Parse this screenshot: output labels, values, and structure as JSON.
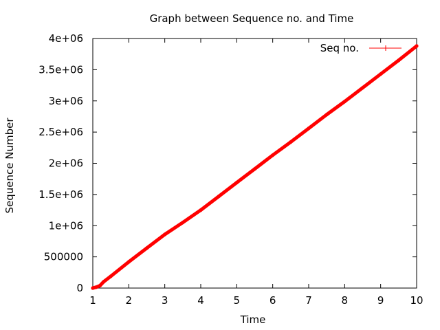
{
  "chart_data": {
    "type": "line",
    "title": "Graph between Sequence no. and Time",
    "xlabel": "Time",
    "ylabel": "Sequence Number",
    "xlim": [
      1,
      10
    ],
    "ylim": [
      0,
      4000000
    ],
    "x_ticks": [
      1,
      2,
      3,
      4,
      5,
      6,
      7,
      8,
      9,
      10
    ],
    "x_tick_labels": [
      "1",
      "2",
      "3",
      "4",
      "5",
      "6",
      "7",
      "8",
      "9",
      "10"
    ],
    "y_ticks": [
      0,
      500000,
      1000000,
      1500000,
      2000000,
      2500000,
      3000000,
      3500000,
      4000000
    ],
    "y_tick_labels": [
      "0",
      "500000",
      "1e+06",
      "1.5e+06",
      "2e+06",
      "2.5e+06",
      "3e+06",
      "3.5e+06",
      "4e+06"
    ],
    "grid": false,
    "legend_position": "top-right",
    "series": [
      {
        "name": "Seq no.",
        "color": "#ff0000",
        "points": [
          [
            1.0,
            0
          ],
          [
            1.1,
            15000
          ],
          [
            1.2,
            40000
          ],
          [
            1.3,
            100000
          ],
          [
            1.5,
            190000
          ],
          [
            2.0,
            420000
          ],
          [
            2.5,
            640000
          ],
          [
            3.0,
            860000
          ],
          [
            3.5,
            1050000
          ],
          [
            4.0,
            1250000
          ],
          [
            4.5,
            1470000
          ],
          [
            5.0,
            1690000
          ],
          [
            5.5,
            1910000
          ],
          [
            6.0,
            2130000
          ],
          [
            6.5,
            2340000
          ],
          [
            7.0,
            2560000
          ],
          [
            7.5,
            2780000
          ],
          [
            8.0,
            2990000
          ],
          [
            8.5,
            3210000
          ],
          [
            9.0,
            3430000
          ],
          [
            9.5,
            3650000
          ],
          [
            10.0,
            3880000
          ]
        ]
      }
    ]
  }
}
